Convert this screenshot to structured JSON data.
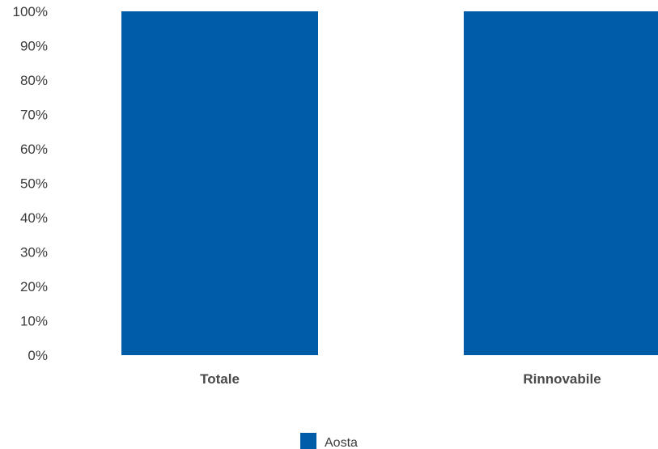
{
  "chart_data": {
    "type": "bar",
    "stacked": true,
    "categories": [
      "Totale",
      "Rinnovabile"
    ],
    "series": [
      {
        "name": "Aosta",
        "values": [
          100,
          100
        ],
        "color": "#005ca9"
      }
    ],
    "ylim": [
      0,
      100
    ],
    "y_ticks": [
      0,
      10,
      20,
      30,
      40,
      50,
      60,
      70,
      80,
      90,
      100
    ],
    "y_tick_suffix": "%",
    "grid": false,
    "legend": "bottom-center"
  }
}
